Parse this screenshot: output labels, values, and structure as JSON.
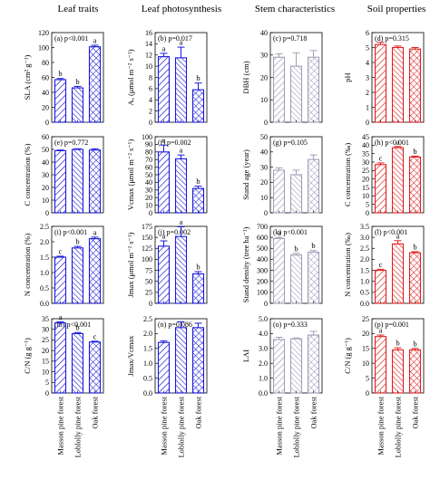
{
  "column_titles": [
    "Leaf traits",
    "Leaf photosynthesis",
    "Stem characteristics",
    "Soil properties"
  ],
  "categories": [
    "Masson pine forest",
    "Loblolly pine forest",
    "Oak forest"
  ],
  "colors": {
    "Leaf traits": "#1a1adb",
    "Leaf photosynthesis": "#1a1adb",
    "Stem characteristics": "#a0a0b8",
    "Soil properties": "#e02020"
  },
  "patterns": [
    "diagonal-stripes",
    "back-diagonal-stripes",
    "crosshatch"
  ],
  "chart_data": [
    {
      "type": "bar",
      "panel": "(a)",
      "p_text": "p<0.001",
      "ylabel": "SLA (cm² g⁻¹)",
      "ylim": [
        0,
        120
      ],
      "yticks": [
        0,
        20,
        40,
        60,
        80,
        100,
        120
      ],
      "values": [
        57,
        46,
        101
      ],
      "errors": [
        1.5,
        2,
        2
      ],
      "letters": [
        "b",
        "b",
        "a"
      ],
      "column": 0
    },
    {
      "type": "bar",
      "panel": "(b)",
      "p_text": "p=0.017",
      "ylabel": "Aₐ (μmol m⁻² s⁻¹)",
      "ylim": [
        0,
        16
      ],
      "yticks": [
        0,
        2,
        4,
        6,
        8,
        10,
        12,
        14,
        16
      ],
      "values": [
        11.7,
        11.5,
        5.8
      ],
      "errors": [
        0.6,
        1.9,
        1.2
      ],
      "letters": [
        "a",
        "a",
        "b"
      ],
      "column": 1
    },
    {
      "type": "bar",
      "panel": "(c)",
      "p_text": "p=0.718",
      "ylabel": "DBH (cm)",
      "ylim": [
        0,
        40
      ],
      "yticks": [
        0,
        10,
        20,
        30,
        40
      ],
      "values": [
        29,
        25,
        29
      ],
      "errors": [
        1.5,
        6,
        3
      ],
      "letters": [],
      "column": 2
    },
    {
      "type": "bar",
      "panel": "(d)",
      "p_text": "p=0.315",
      "ylabel": "pH",
      "ylim": [
        0,
        6
      ],
      "yticks": [
        0,
        1,
        2,
        3,
        4,
        5,
        6
      ],
      "values": [
        5.2,
        5.0,
        4.9
      ],
      "errors": [
        0.15,
        0.1,
        0.1
      ],
      "letters": [],
      "column": 3
    },
    {
      "type": "bar",
      "panel": "(e)",
      "p_text": "p=0.772",
      "ylabel": "C concentration (%)",
      "ylim": [
        0,
        60
      ],
      "yticks": [
        0,
        10,
        20,
        30,
        40,
        50,
        60
      ],
      "values": [
        49,
        50,
        49.5
      ],
      "errors": [
        0.5,
        0.5,
        1
      ],
      "letters": [],
      "column": 0
    },
    {
      "type": "bar",
      "panel": "(f)",
      "p_text": "p=0.002",
      "ylabel": "Vcmax (μmol m⁻² s⁻¹)",
      "ylim": [
        0,
        100
      ],
      "yticks": [
        0,
        10,
        20,
        30,
        40,
        50,
        60,
        70,
        80,
        90,
        100
      ],
      "values": [
        80,
        71,
        32
      ],
      "errors": [
        9,
        5,
        3
      ],
      "letters": [
        "a",
        "a",
        "b"
      ],
      "column": 1
    },
    {
      "type": "bar",
      "panel": "(g)",
      "p_text": "p=0.105",
      "ylabel": "Stand age (year)",
      "ylim": [
        0,
        50
      ],
      "yticks": [
        0,
        10,
        20,
        30,
        40,
        50
      ],
      "values": [
        28,
        25,
        35
      ],
      "errors": [
        1.5,
        3,
        3
      ],
      "letters": [],
      "column": 2
    },
    {
      "type": "bar",
      "panel": "(h)",
      "p_text": "p<0.001",
      "ylabel": "C concentration (‰)",
      "ylim": [
        0,
        45
      ],
      "yticks": [
        0,
        5,
        10,
        15,
        20,
        25,
        30,
        35,
        40,
        45
      ],
      "values": [
        28.5,
        38.5,
        33
      ],
      "errors": [
        1,
        0.7,
        0.5
      ],
      "letters": [
        "c",
        "a",
        "b"
      ],
      "column": 3
    },
    {
      "type": "bar",
      "panel": "(i)",
      "p_text": "p<0.001",
      "ylabel": "N concentration (%)",
      "ylim": [
        0,
        2.5
      ],
      "yticks": [
        0.0,
        0.5,
        1.0,
        1.5,
        2.0,
        2.5
      ],
      "values": [
        1.5,
        1.8,
        2.1
      ],
      "errors": [
        0.03,
        0.05,
        0.05
      ],
      "letters": [
        "c",
        "b",
        "a"
      ],
      "column": 0
    },
    {
      "type": "bar",
      "panel": "(j)",
      "p_text": "p=0.002",
      "ylabel": "Jmax (μmol m⁻² s⁻¹)",
      "ylim": [
        0,
        175
      ],
      "yticks": [
        0,
        25,
        50,
        75,
        100,
        125,
        150,
        175
      ],
      "values": [
        130,
        152,
        67
      ],
      "errors": [
        12,
        22,
        5
      ],
      "letters": [
        "a",
        "a",
        "b"
      ],
      "column": 1
    },
    {
      "type": "bar",
      "panel": "(k)",
      "p_text": "p<0.001",
      "ylabel": "Stand density (tree ha⁻¹)",
      "ylim": [
        0,
        700
      ],
      "yticks": [
        0,
        100,
        200,
        300,
        400,
        500,
        600,
        700
      ],
      "values": [
        590,
        440,
        465
      ],
      "errors": [
        10,
        15,
        15
      ],
      "letters": [
        "a",
        "b",
        "b"
      ],
      "column": 2
    },
    {
      "type": "bar",
      "panel": "(l)",
      "p_text": "p<0.001",
      "ylabel": "N concentration (‰)",
      "ylim": [
        0,
        3.5
      ],
      "yticks": [
        0.0,
        0.5,
        1.0,
        1.5,
        2.0,
        2.5,
        3.0,
        3.5
      ],
      "values": [
        1.5,
        2.7,
        2.3
      ],
      "errors": [
        0.05,
        0.15,
        0.05
      ],
      "letters": [
        "c",
        "a",
        "b"
      ],
      "column": 3
    },
    {
      "type": "bar",
      "panel": "(m)",
      "p_text": "p<0.001",
      "ylabel": "C/N (g g⁻¹)",
      "ylim": [
        0,
        35
      ],
      "yticks": [
        0,
        5,
        10,
        15,
        20,
        25,
        30,
        35
      ],
      "values": [
        33,
        28,
        24
      ],
      "errors": [
        0.5,
        0.5,
        0.4
      ],
      "letters": [
        "a",
        "b",
        "c"
      ],
      "column": 0
    },
    {
      "type": "bar",
      "panel": "(n)",
      "p_text": "p=0.086",
      "ylabel": "Jmax/Vcmax",
      "ylim": [
        0,
        2.5
      ],
      "yticks": [
        0.0,
        0.5,
        1.0,
        1.5,
        2.0,
        2.5
      ],
      "values": [
        1.7,
        2.2,
        2.2
      ],
      "errors": [
        0.05,
        0.2,
        0.15
      ],
      "letters": [],
      "column": 1
    },
    {
      "type": "bar",
      "panel": "(o)",
      "p_text": "p=0.333",
      "ylabel": "LAI",
      "ylim": [
        0,
        5
      ],
      "yticks": [
        0,
        1,
        2,
        3,
        4,
        5
      ],
      "values": [
        3.6,
        3.65,
        3.9
      ],
      "errors": [
        0.15,
        0.05,
        0.25
      ],
      "letters": [],
      "column": 2
    },
    {
      "type": "bar",
      "panel": "(p)",
      "p_text": "p=0.001",
      "ylabel": "C/N (g g⁻¹)",
      "ylim": [
        0,
        25
      ],
      "yticks": [
        0,
        5,
        10,
        15,
        20,
        25
      ],
      "values": [
        19,
        14.5,
        14.5
      ],
      "errors": [
        0.5,
        0.7,
        0.5
      ],
      "letters": [
        "a",
        "b",
        "b"
      ],
      "column": 3
    }
  ]
}
